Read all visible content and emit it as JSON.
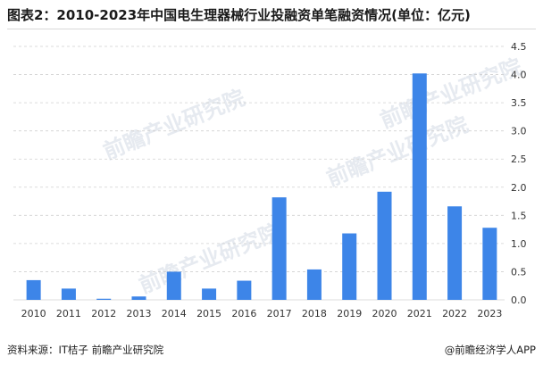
{
  "title": "图表2：2010-2023年中国电生理器械行业投融资单笔融资情况(单位：亿元)",
  "source": "资料来源：IT桔子 前瞻产业研究院",
  "publisher": "@前瞻经济学人APP",
  "watermark": "前瞻产业研究院",
  "colors": {
    "bar": "#3d85e8",
    "grid": "#d0d0d0",
    "text": "#333333"
  },
  "chart_data": {
    "type": "bar",
    "categories": [
      "2010",
      "2011",
      "2012",
      "2013",
      "2014",
      "2015",
      "2016",
      "2017",
      "2018",
      "2019",
      "2020",
      "2021",
      "2022",
      "2023"
    ],
    "values": [
      0.35,
      0.2,
      0.02,
      0.06,
      0.5,
      0.2,
      0.34,
      1.82,
      0.54,
      1.18,
      1.92,
      4.02,
      1.66,
      1.28
    ],
    "ylim": [
      0,
      4.5
    ],
    "yticks": [
      "0.0",
      "0.5",
      "1.0",
      "1.5",
      "2.0",
      "2.5",
      "3.0",
      "3.5",
      "4.0",
      "4.5"
    ],
    "grid": true,
    "y_axis_side": "right"
  }
}
